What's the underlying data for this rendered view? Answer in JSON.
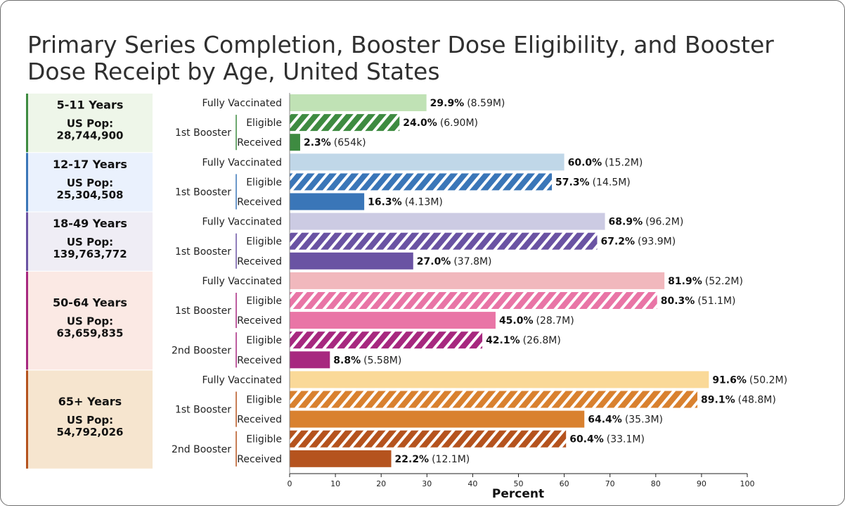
{
  "chart_data": {
    "type": "bar",
    "title": "Primary Series Completion, Booster Dose Eligibility, and Booster Dose Receipt by Age, United States",
    "xlabel": "Percent",
    "xlim": [
      0,
      100
    ],
    "x_ticks": [
      0,
      10,
      20,
      30,
      40,
      50,
      60,
      70,
      80,
      90,
      100
    ],
    "orientation": "horizontal",
    "pattern_for_eligible": "diagonal-stripes",
    "groups": [
      {
        "label": "5-11 Years",
        "pop_label": "US Pop:",
        "pop_value": "28,744,900",
        "colors": {
          "panel_bg": "#eef6e9",
          "accent": "#3e8b41",
          "light": "#c0e2b5",
          "mid": "#3e8b41",
          "dark": "#3e8b41"
        },
        "rows": [
          {
            "section": "",
            "label": "Fully Vaccinated",
            "value": 29.9,
            "text": "29.9%",
            "count": "(8.59M)",
            "style": "light"
          },
          {
            "section": "1st Booster",
            "label": "Eligible",
            "value": 24.0,
            "text": "24.0%",
            "count": "(6.90M)",
            "style": "striped"
          },
          {
            "section": "1st Booster",
            "label": "Received",
            "value": 2.3,
            "text": "2.3%",
            "count": "(654k)",
            "style": "dark"
          }
        ]
      },
      {
        "label": "12-17 Years",
        "pop_label": "US Pop:",
        "pop_value": "25,304,508",
        "colors": {
          "panel_bg": "#eaf1fd",
          "accent": "#3a76b8",
          "light": "#c0d7e8",
          "mid": "#3a76b8",
          "dark": "#3a76b8"
        },
        "rows": [
          {
            "section": "",
            "label": "Fully Vaccinated",
            "value": 60.0,
            "text": "60.0%",
            "count": "(15.2M)",
            "style": "light"
          },
          {
            "section": "1st Booster",
            "label": "Eligible",
            "value": 57.3,
            "text": "57.3%",
            "count": "(14.5M)",
            "style": "striped"
          },
          {
            "section": "1st Booster",
            "label": "Received",
            "value": 16.3,
            "text": "16.3%",
            "count": "(4.13M)",
            "style": "dark"
          }
        ]
      },
      {
        "label": "18-49 Years",
        "pop_label": "US Pop:",
        "pop_value": "139,763,772",
        "colors": {
          "panel_bg": "#efedf5",
          "accent": "#6a53a3",
          "light": "#cccbe3",
          "mid": "#6a53a3",
          "dark": "#6a53a3"
        },
        "rows": [
          {
            "section": "",
            "label": "Fully Vaccinated",
            "value": 68.9,
            "text": "68.9%",
            "count": "(96.2M)",
            "style": "light"
          },
          {
            "section": "1st Booster",
            "label": "Eligible",
            "value": 67.2,
            "text": "67.2%",
            "count": "(93.9M)",
            "style": "striped"
          },
          {
            "section": "1st Booster",
            "label": "Received",
            "value": 27.0,
            "text": "27.0%",
            "count": "(37.8M)",
            "style": "dark"
          }
        ]
      },
      {
        "label": "50-64 Years",
        "pop_label": "US Pop:",
        "pop_value": "63,659,835",
        "colors": {
          "panel_bg": "#fbe9e4",
          "accent": "#a7287f",
          "light": "#f1b8bd",
          "mid": "#e975a6",
          "dark": "#a7287f"
        },
        "rows": [
          {
            "section": "",
            "label": "Fully Vaccinated",
            "value": 81.9,
            "text": "81.9%",
            "count": "(52.2M)",
            "style": "light"
          },
          {
            "section": "1st Booster",
            "label": "Eligible",
            "value": 80.3,
            "text": "80.3%",
            "count": "(51.1M)",
            "style": "striped-mid"
          },
          {
            "section": "1st Booster",
            "label": "Received",
            "value": 45.0,
            "text": "45.0%",
            "count": "(28.7M)",
            "style": "mid"
          },
          {
            "section": "2nd Booster",
            "label": "Eligible",
            "value": 42.1,
            "text": "42.1%",
            "count": "(26.8M)",
            "style": "striped"
          },
          {
            "section": "2nd Booster",
            "label": "Received",
            "value": 8.8,
            "text": "8.8%",
            "count": "(5.58M)",
            "style": "dark"
          }
        ]
      },
      {
        "label": "65+ Years",
        "pop_label": "US Pop:",
        "pop_value": "54,792,026",
        "colors": {
          "panel_bg": "#f6e5cf",
          "accent": "#b5531e",
          "light": "#fad998",
          "mid": "#d9812f",
          "dark": "#b5531e"
        },
        "rows": [
          {
            "section": "",
            "label": "Fully Vaccinated",
            "value": 91.6,
            "text": "91.6%",
            "count": "(50.2M)",
            "style": "light"
          },
          {
            "section": "1st Booster",
            "label": "Eligible",
            "value": 89.1,
            "text": "89.1%",
            "count": "(48.8M)",
            "style": "striped-mid"
          },
          {
            "section": "1st Booster",
            "label": "Received",
            "value": 64.4,
            "text": "64.4%",
            "count": "(35.3M)",
            "style": "mid"
          },
          {
            "section": "2nd Booster",
            "label": "Eligible",
            "value": 60.4,
            "text": "60.4%",
            "count": "(33.1M)",
            "style": "striped"
          },
          {
            "section": "2nd Booster",
            "label": "Received",
            "value": 22.2,
            "text": "22.2%",
            "count": "(12.1M)",
            "style": "dark"
          }
        ]
      }
    ]
  }
}
